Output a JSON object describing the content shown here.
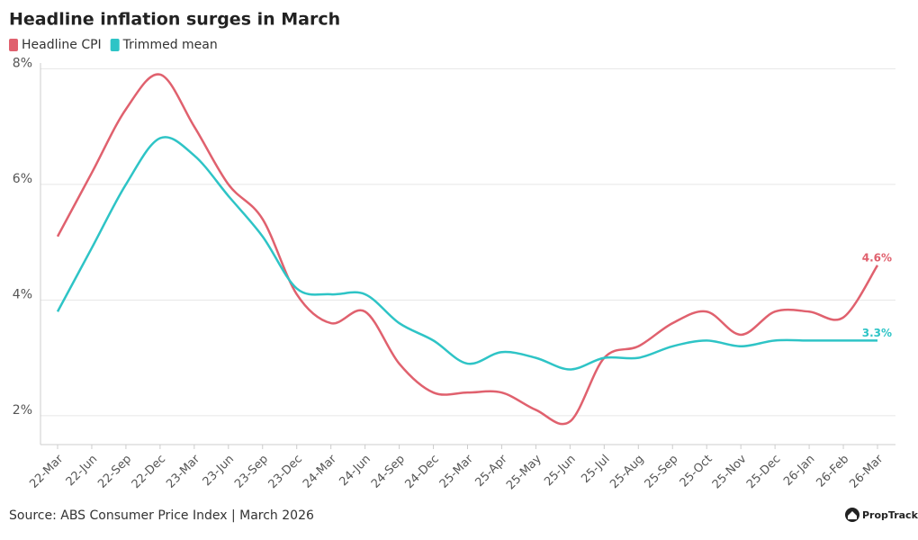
{
  "chart_data": {
    "type": "line",
    "title": "Headline inflation surges in March",
    "categories": [
      "22-Mar",
      "22-Jun",
      "22-Sep",
      "22-Dec",
      "23-Mar",
      "23-Jun",
      "23-Sep",
      "23-Dec",
      "24-Mar",
      "24-Jun",
      "24-Sep",
      "24-Dec",
      "25-Mar",
      "25-Apr",
      "25-May",
      "25-Jun",
      "25-Jul",
      "25-Aug",
      "25-Sep",
      "25-Oct",
      "25-Nov",
      "25-Dec",
      "26-Jan",
      "26-Feb",
      "26-Mar"
    ],
    "series": [
      {
        "name": "Headline CPI",
        "color": "#e0616e",
        "values": [
          5.1,
          6.2,
          7.3,
          7.9,
          7.0,
          6.0,
          5.4,
          4.1,
          3.6,
          3.8,
          2.9,
          2.4,
          2.4,
          2.4,
          2.1,
          1.9,
          3.0,
          3.2,
          3.6,
          3.8,
          3.4,
          3.8,
          3.8,
          3.7,
          4.6
        ],
        "value_labels": [
          null,
          null,
          null,
          null,
          null,
          null,
          null,
          null,
          null,
          null,
          null,
          null,
          null,
          null,
          null,
          null,
          null,
          null,
          null,
          null,
          null,
          null,
          null,
          null,
          "4.6%"
        ]
      },
      {
        "name": "Trimmed mean",
        "color": "#2ec4c6",
        "values": [
          3.8,
          4.9,
          6.0,
          6.8,
          6.5,
          5.8,
          5.1,
          4.2,
          4.1,
          4.1,
          3.6,
          3.3,
          2.9,
          3.1,
          3.0,
          2.8,
          3.0,
          3.0,
          3.2,
          3.3,
          3.2,
          3.3,
          3.3,
          3.3,
          3.3
        ],
        "value_labels": [
          null,
          null,
          null,
          null,
          null,
          null,
          null,
          null,
          null,
          null,
          null,
          null,
          null,
          null,
          null,
          null,
          null,
          null,
          null,
          null,
          null,
          null,
          null,
          null,
          "3.3%"
        ]
      }
    ],
    "ylim": [
      1.5,
      8.1
    ],
    "yticks": [
      {
        "value": 2,
        "label": "2%"
      },
      {
        "value": 4,
        "label": "4%"
      },
      {
        "value": 6,
        "label": "6%"
      },
      {
        "value": 8,
        "label": "8%"
      }
    ],
    "grid": true,
    "source": "Source: ABS Consumer Price Index | March 2026",
    "brand": "PropTrack"
  }
}
